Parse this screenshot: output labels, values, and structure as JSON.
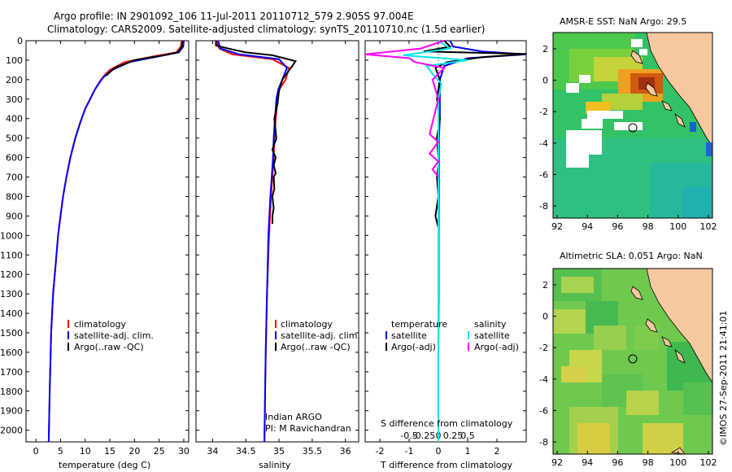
{
  "header": {
    "line1": "Argo profile: IN 2901092_106 11-Jul-2011 20110712_579 2.905S 97.004E",
    "line2": "Climatology: CARS2009. Satellite-adjusted climatology: synTS_20110710.nc (1.5d earlier)"
  },
  "colors": {
    "climatology": "#ff0000",
    "satellite": "#0000ff",
    "argo": "#000000",
    "sal_satellite": "#00e5ee",
    "sal_argo": "#ff00ff",
    "land": "#f6c8a0"
  },
  "chart_data": [
    {
      "type": "line",
      "name": "temperature",
      "xlabel": "temperature (deg C)",
      "ylabel": "",
      "xlim": [
        -2,
        31
      ],
      "ylim": [
        2060,
        0
      ],
      "xticks": [
        0,
        5,
        10,
        15,
        20,
        25,
        30
      ],
      "xtick_labels": [
        "0",
        "5",
        "10",
        "15",
        "20",
        "25",
        "30"
      ],
      "yticks": [
        0,
        100,
        200,
        300,
        400,
        500,
        600,
        700,
        800,
        900,
        1000,
        1100,
        1200,
        1300,
        1400,
        1500,
        1600,
        1700,
        1800,
        1900,
        2000
      ],
      "ytick_labels": [
        "0",
        "100",
        "200",
        "300",
        "400",
        "500",
        "600",
        "700",
        "800",
        "900",
        "1000",
        "1100",
        "1200",
        "1300",
        "1400",
        "1500",
        "1600",
        "1700",
        "1800",
        "1900",
        "2000"
      ],
      "legend": [
        "climatology",
        "satellite-adj. clim.",
        "Argo(..raw -QC)"
      ],
      "series": [
        {
          "name": "climatology",
          "color": "#ff0000",
          "x": [
            29.6,
            29.4,
            28.5,
            24,
            18,
            15,
            13.8,
            13.2,
            12,
            11,
            10,
            9,
            8,
            7,
            6.2,
            5.5,
            5,
            4.5,
            4,
            3.5,
            3.1,
            2.8,
            2.6
          ],
          "y": [
            0,
            30,
            60,
            80,
            110,
            150,
            180,
            200,
            250,
            300,
            350,
            420,
            500,
            600,
            700,
            800,
            900,
            1000,
            1150,
            1300,
            1500,
            1800,
            2060
          ]
        },
        {
          "name": "satellite-adj. clim.",
          "color": "#0000ff",
          "x": [
            30,
            29.9,
            29,
            25,
            19,
            15.5,
            14,
            13.3,
            12,
            11,
            10,
            9,
            8,
            7,
            6.2,
            5.5,
            5,
            4.5,
            4,
            3.5,
            3.1,
            2.8,
            2.6
          ],
          "y": [
            0,
            30,
            60,
            80,
            110,
            150,
            180,
            200,
            250,
            300,
            350,
            420,
            500,
            600,
            700,
            800,
            900,
            1000,
            1150,
            1300,
            1500,
            1800,
            2060
          ]
        },
        {
          "name": "Argo(..raw -QC)",
          "color": "#000000",
          "x": [
            29.8,
            29.6,
            28.8,
            26,
            20,
            16,
            14.2
          ],
          "y": [
            0,
            30,
            60,
            75,
            100,
            140,
            180
          ]
        }
      ]
    },
    {
      "type": "line",
      "name": "salinity",
      "xlabel": "salinity",
      "ylabel": "",
      "xlim": [
        33.75,
        36.2
      ],
      "ylim": [
        2060,
        0
      ],
      "xticks": [
        34,
        34.5,
        35,
        35.5,
        36
      ],
      "xtick_labels": [
        "34",
        "34.5",
        "35",
        "35.5",
        "36"
      ],
      "legend": [
        "climatology",
        "satellite-adj. clim.",
        "Argo(..raw -QC)"
      ],
      "annotation": [
        "Indian ARGO",
        "PI: M Ravichandran"
      ],
      "series": [
        {
          "name": "climatology",
          "color": "#ff0000",
          "x": [
            34.05,
            34.1,
            34.3,
            34.9,
            35.15,
            35.1,
            35.0,
            34.98,
            34.95,
            34.93,
            34.92,
            34.9,
            34.88,
            34.85,
            34.82,
            34.8,
            34.78
          ],
          "y": [
            0,
            40,
            70,
            95,
            140,
            200,
            250,
            300,
            400,
            500,
            600,
            700,
            800,
            1000,
            1300,
            1600,
            2060
          ]
        },
        {
          "name": "satellite-adj. clim.",
          "color": "#0000ff",
          "x": [
            34.08,
            34.12,
            34.4,
            35.0,
            35.12,
            35.05,
            34.99,
            34.96,
            34.94,
            34.92,
            34.91,
            34.89,
            34.87,
            34.84,
            34.82,
            34.8,
            34.78
          ],
          "y": [
            0,
            40,
            70,
            95,
            140,
            200,
            250,
            300,
            400,
            500,
            600,
            700,
            800,
            1000,
            1300,
            1600,
            2060
          ]
        },
        {
          "name": "Argo(..raw -QC)",
          "color": "#000000",
          "x": [
            34.05,
            34.05,
            34.3,
            34.5,
            34.9,
            35.25,
            35.2,
            35.05,
            35.0,
            34.98,
            34.93,
            34.96,
            34.9,
            34.95,
            34.92,
            34.95,
            34.92,
            34.93,
            34.9,
            34.92,
            34.9,
            34.9
          ],
          "y": [
            0,
            25,
            45,
            60,
            75,
            105,
            130,
            200,
            260,
            320,
            400,
            500,
            560,
            600,
            640,
            680,
            700,
            760,
            800,
            860,
            900,
            940
          ]
        }
      ]
    },
    {
      "type": "line",
      "name": "difference",
      "xlabel": "T difference from climatology",
      "xlabel_top": "S difference from climatology",
      "xlim": [
        -2.5,
        3
      ],
      "ylim": [
        2060,
        0
      ],
      "xticks": [
        -2,
        -1,
        0,
        1,
        2
      ],
      "xtick_labels": [
        "-2",
        "-1",
        "0",
        "1",
        "2"
      ],
      "s_ticks": [
        -0.5,
        -0.25,
        0,
        0.25,
        0.5
      ],
      "s_tick_labels": [
        "-0.5",
        "-0.25",
        "0",
        "0.25",
        "0.5"
      ],
      "legend_titles": [
        "temperature",
        "salinity"
      ],
      "legend": [
        "satellite",
        "Argo(-adj)",
        "satellite",
        "Argo(-adj)"
      ],
      "series": [
        {
          "name": "T satellite",
          "color": "#0000ff",
          "x": [
            0.4,
            0.5,
            1.5,
            3.0,
            1.0,
            0.2,
            0.05,
            0.05,
            0.05,
            0.02,
            0.02,
            0.01,
            0.01,
            0.0,
            0.0
          ],
          "y": [
            0,
            30,
            55,
            70,
            90,
            130,
            200,
            300,
            400,
            500,
            700,
            1000,
            1300,
            1600,
            2060
          ]
        },
        {
          "name": "T Argo(-adj)",
          "color": "#000000",
          "x": [
            0.2,
            0.4,
            -0.5,
            3.0,
            1.5,
            0.3,
            -0.1,
            0.05,
            -0.05,
            0.05,
            -0.05,
            0.0,
            0.0,
            -0.05,
            0.0,
            -0.1,
            0.0,
            0.0
          ],
          "y": [
            0,
            30,
            55,
            68,
            85,
            110,
            140,
            200,
            300,
            400,
            500,
            600,
            640,
            700,
            800,
            900,
            960,
            1000
          ]
        },
        {
          "name": "S satellite",
          "color": "#00e5ee",
          "x": [
            0.0,
            0.2,
            -0.6,
            0.5,
            -0.2,
            -0.1,
            0.05,
            0.0,
            0.0,
            0.0,
            0.0,
            0.0
          ],
          "y": [
            0,
            40,
            75,
            100,
            130,
            170,
            220,
            300,
            500,
            1000,
            1500,
            2060
          ]
        },
        {
          "name": "S Argo(-adj)",
          "color": "#ff00ff",
          "x": [
            0.1,
            -0.3,
            -1.3,
            -0.5,
            -0.4,
            0.1,
            -0.1,
            0.0,
            -0.15,
            0.0,
            -0.15,
            0.0,
            -0.1,
            0.0
          ],
          "y": [
            0,
            40,
            70,
            90,
            110,
            140,
            200,
            300,
            480,
            520,
            580,
            620,
            660,
            700
          ]
        }
      ]
    }
  ],
  "maps": [
    {
      "title": "AMSR-E SST: NaN Argo: 29.5",
      "xticks": [
        "92",
        "94",
        "96",
        "98",
        "100",
        "102"
      ],
      "yticks": [
        "2",
        "0",
        "-2",
        "-4",
        "-6",
        "-8"
      ]
    },
    {
      "title": "Altimetric SLA: 0.051 Argo: NaN",
      "xticks": [
        "92",
        "94",
        "96",
        "98",
        "100",
        "102"
      ],
      "yticks": [
        "2",
        "0",
        "-2",
        "-4",
        "-6",
        "-8"
      ]
    }
  ],
  "stamp": "©IMOS 27-Sep-2011 21:41:01"
}
